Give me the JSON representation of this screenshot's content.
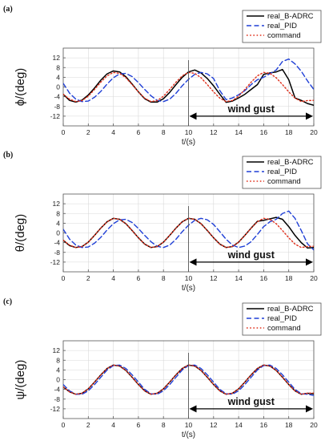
{
  "figure": {
    "panels": [
      "(a)",
      "(b)",
      "(c)"
    ]
  },
  "chart_data": [
    {
      "type": "line",
      "panel_label": "(a)",
      "ylabel": "ϕ/(deg)",
      "xlabel": "t/(s)",
      "xlim": [
        0,
        20
      ],
      "ylim": [
        -16,
        16
      ],
      "xticks": [
        "0",
        "2",
        "4",
        "6",
        "8",
        "10",
        "12",
        "14",
        "16",
        "18",
        "20"
      ],
      "yticks": [
        "12",
        "8",
        "4",
        "0",
        "-4",
        "-8",
        "-12"
      ],
      "grid": true,
      "legend": {
        "placement": "top-right",
        "entries": [
          "real_B-ADRC",
          "real_PID",
          "command"
        ]
      },
      "annotation": {
        "text": "wind gust",
        "x_range": [
          10,
          20
        ],
        "marker_x": 10
      },
      "series": [
        {
          "name": "real_B-ADRC",
          "color": "#000000",
          "style": "solid",
          "x": [
            0,
            0.5,
            1,
            1.5,
            2,
            2.5,
            3,
            3.5,
            4,
            4.5,
            5,
            5.5,
            6,
            6.5,
            7,
            7.5,
            8,
            8.5,
            9,
            9.5,
            10,
            10.5,
            11,
            11.5,
            12,
            12.5,
            13,
            13.5,
            14,
            14.5,
            15,
            15.5,
            16,
            16.5,
            17,
            17.5,
            18,
            18.5,
            19,
            19.5,
            20
          ],
          "y": [
            -3,
            -5.5,
            -6.2,
            -5.4,
            -3.3,
            -0.4,
            2.8,
            5.4,
            6.6,
            6.2,
            4.2,
            1.2,
            -2,
            -4.8,
            -6.2,
            -6.2,
            -4.8,
            -2.2,
            1,
            4,
            6.2,
            7,
            5.8,
            3.5,
            0.5,
            -3,
            -6.3,
            -5.8,
            -4.5,
            -3,
            -1,
            1,
            5.2,
            5.8,
            6.2,
            7.2,
            3,
            -4.5,
            -5.5,
            -6.8,
            -7.5
          ]
        },
        {
          "name": "real_PID",
          "color": "#1f3fd6",
          "style": "dashed",
          "x": [
            0,
            0.5,
            1,
            1.5,
            2,
            2.5,
            3,
            3.5,
            4,
            4.5,
            5,
            5.5,
            6,
            6.5,
            7,
            7.5,
            8,
            8.5,
            9,
            9.5,
            10,
            10.5,
            11,
            11.5,
            12,
            12.5,
            13,
            13.5,
            14,
            14.5,
            15,
            15.5,
            16,
            16.5,
            17,
            17.5,
            18,
            18.5,
            19,
            19.5,
            20
          ],
          "y": [
            1.5,
            -2.5,
            -5,
            -6,
            -5.8,
            -4.2,
            -1.8,
            1.2,
            3.8,
            5.4,
            5.6,
            4.3,
            1.8,
            -1,
            -3.6,
            -5.5,
            -6,
            -5,
            -2.6,
            0.5,
            3.2,
            5.2,
            6,
            5.4,
            3.5,
            -1.5,
            -5.2,
            -4.5,
            -3.2,
            -1.5,
            1,
            3,
            4,
            5.5,
            7,
            10.5,
            11.5,
            9.5,
            6.5,
            2.5,
            -1
          ]
        },
        {
          "name": "command",
          "color": "#e0301c",
          "style": "dotted",
          "x": [
            0,
            0.5,
            1,
            1.5,
            2,
            2.5,
            3,
            3.5,
            4,
            4.5,
            5,
            5.5,
            6,
            6.5,
            7,
            7.5,
            8,
            8.5,
            9,
            9.5,
            10,
            10.5,
            11,
            11.5,
            12,
            12.5,
            13,
            13.5,
            14,
            14.5,
            15,
            15.5,
            16,
            16.5,
            17,
            17.5,
            18,
            18.5,
            19,
            19.5,
            20
          ],
          "y": [
            -3,
            -5,
            -6,
            -5.6,
            -3.8,
            -1,
            2,
            4.6,
            6,
            5.6,
            3.8,
            1,
            -2,
            -4.6,
            -6,
            -5.6,
            -3.8,
            -1,
            2,
            4.6,
            6,
            5.6,
            3.8,
            1,
            -2,
            -4.6,
            -6,
            -5.6,
            -3.8,
            -1,
            2,
            4.6,
            6,
            5.6,
            3.8,
            1,
            -2,
            -4.6,
            -6,
            -5.6,
            -5.5
          ]
        }
      ]
    },
    {
      "type": "line",
      "panel_label": "(b)",
      "ylabel": "θ/(deg)",
      "xlabel": "t/(s)",
      "xlim": [
        0,
        20
      ],
      "ylim": [
        -16,
        16
      ],
      "xticks": [
        "0",
        "2",
        "4",
        "6",
        "8",
        "10",
        "12",
        "14",
        "16",
        "18",
        "20"
      ],
      "yticks": [
        "12",
        "8",
        "4",
        "0",
        "-4",
        "-8",
        "-12"
      ],
      "grid": true,
      "legend": {
        "placement": "top-right",
        "entries": [
          "real_B-ADRC",
          "real_PID",
          "command"
        ]
      },
      "annotation": {
        "text": "wind gust",
        "x_range": [
          10,
          20
        ],
        "marker_x": 10
      },
      "series": [
        {
          "name": "real_B-ADRC",
          "color": "#000000",
          "style": "solid",
          "x": [
            0,
            0.5,
            1,
            1.5,
            2,
            2.5,
            3,
            3.5,
            4,
            4.5,
            5,
            5.5,
            6,
            6.5,
            7,
            7.5,
            8,
            8.5,
            9,
            9.5,
            10,
            10.5,
            11,
            11.5,
            12,
            12.5,
            13,
            13.5,
            14,
            14.5,
            15,
            15.5,
            16,
            16.5,
            17,
            17.5,
            18,
            18.5,
            19,
            19.5,
            20
          ],
          "y": [
            -3,
            -5.2,
            -6,
            -5.6,
            -3.8,
            -1,
            2,
            4.6,
            6,
            5.6,
            3.8,
            1,
            -2,
            -4.6,
            -6,
            -5.6,
            -3.8,
            -1,
            2,
            4.6,
            6,
            5.6,
            3.8,
            1,
            -2,
            -4.6,
            -6,
            -5.6,
            -3.8,
            -1,
            2,
            4.8,
            5.2,
            5.8,
            6.4,
            5.6,
            2.6,
            -1,
            -4,
            -6.2,
            -6
          ]
        },
        {
          "name": "real_PID",
          "color": "#1f3fd6",
          "style": "dashed",
          "x": [
            0,
            0.5,
            1,
            1.5,
            2,
            2.5,
            3,
            3.5,
            4,
            4.5,
            5,
            5.5,
            6,
            6.5,
            7,
            7.5,
            8,
            8.5,
            9,
            9.5,
            10,
            10.5,
            11,
            11.5,
            12,
            12.5,
            13,
            13.5,
            14,
            14.5,
            15,
            15.5,
            16,
            16.5,
            17,
            17.5,
            18,
            18.5,
            19,
            19.5,
            20
          ],
          "y": [
            1.5,
            -2.5,
            -5,
            -6,
            -5.8,
            -4.2,
            -1.8,
            1.2,
            3.8,
            5.4,
            5.6,
            4.3,
            1.8,
            -1,
            -3.6,
            -5.5,
            -6,
            -5,
            -2.6,
            0.5,
            3.2,
            5.2,
            6,
            5.4,
            3.5,
            0.5,
            -2.6,
            -5,
            -6,
            -5.4,
            -3.6,
            -0.6,
            2.6,
            4.6,
            5.6,
            8,
            9,
            6,
            1,
            -4.5,
            -7
          ]
        },
        {
          "name": "command",
          "color": "#e0301c",
          "style": "dotted",
          "x": [
            0,
            0.5,
            1,
            1.5,
            2,
            2.5,
            3,
            3.5,
            4,
            4.5,
            5,
            5.5,
            6,
            6.5,
            7,
            7.5,
            8,
            8.5,
            9,
            9.5,
            10,
            10.5,
            11,
            11.5,
            12,
            12.5,
            13,
            13.5,
            14,
            14.5,
            15,
            15.5,
            16,
            16.5,
            17,
            17.5,
            18,
            18.5,
            19,
            19.5,
            20
          ],
          "y": [
            -3,
            -5,
            -6,
            -5.6,
            -3.8,
            -1,
            2,
            4.6,
            6,
            5.6,
            3.8,
            1,
            -2,
            -4.6,
            -6,
            -5.6,
            -3.8,
            -1,
            2,
            4.6,
            6,
            5.6,
            3.8,
            1,
            -2,
            -4.6,
            -6,
            -5.6,
            -3.8,
            -1,
            2,
            4.6,
            6,
            5.6,
            3.8,
            1,
            -2,
            -4.6,
            -6,
            -5.6,
            -5.5
          ]
        }
      ]
    },
    {
      "type": "line",
      "panel_label": "(c)",
      "ylabel": "ψ/(deg)",
      "xlabel": "t/(s)",
      "xlim": [
        0,
        20
      ],
      "ylim": [
        -16,
        16
      ],
      "xticks": [
        "0",
        "2",
        "4",
        "6",
        "8",
        "10",
        "12",
        "14",
        "16",
        "18",
        "20"
      ],
      "yticks": [
        "12",
        "8",
        "4",
        "0",
        "-4",
        "-8",
        "-12"
      ],
      "grid": true,
      "legend": {
        "placement": "top-right",
        "entries": [
          "real_B-ADRC",
          "real_PID",
          "command"
        ]
      },
      "annotation": {
        "text": "wind gust",
        "x_range": [
          10,
          20
        ],
        "marker_x": 10
      },
      "series": [
        {
          "name": "real_B-ADRC",
          "color": "#000000",
          "style": "solid",
          "x": [
            0,
            0.5,
            1,
            1.5,
            2,
            2.5,
            3,
            3.5,
            4,
            4.5,
            5,
            5.5,
            6,
            6.5,
            7,
            7.5,
            8,
            8.5,
            9,
            9.5,
            10,
            10.5,
            11,
            11.5,
            12,
            12.5,
            13,
            13.5,
            14,
            14.5,
            15,
            15.5,
            16,
            16.5,
            17,
            17.5,
            18,
            18.5,
            19,
            19.5,
            20
          ],
          "y": [
            -3,
            -5,
            -6,
            -5.6,
            -3.8,
            -1,
            2,
            4.6,
            6,
            5.6,
            3.8,
            1,
            -2,
            -4.6,
            -6,
            -5.6,
            -3.8,
            -1,
            2,
            4.6,
            6,
            5.6,
            3.8,
            1,
            -2,
            -4.6,
            -6,
            -5.6,
            -3.8,
            -1,
            2,
            4.6,
            6,
            5.6,
            3.8,
            1,
            -2,
            -4.6,
            -6,
            -5.6,
            -5.8
          ]
        },
        {
          "name": "real_PID",
          "color": "#1f3fd6",
          "style": "dashed",
          "x": [
            0,
            0.5,
            1,
            1.5,
            2,
            2.5,
            3,
            3.5,
            4,
            4.5,
            5,
            5.5,
            6,
            6.5,
            7,
            7.5,
            8,
            8.5,
            9,
            9.5,
            10,
            10.5,
            11,
            11.5,
            12,
            12.5,
            13,
            13.5,
            14,
            14.5,
            15,
            15.5,
            16,
            16.5,
            17,
            17.5,
            18,
            18.5,
            19,
            19.5,
            20
          ],
          "y": [
            -2,
            -4.6,
            -6,
            -6,
            -4.6,
            -2,
            1,
            4,
            5.8,
            6,
            4.6,
            2,
            -1,
            -4,
            -5.8,
            -6,
            -4.6,
            -2,
            1,
            4,
            5.8,
            6,
            4.6,
            2,
            -1,
            -4,
            -5.8,
            -6,
            -4.6,
            -2,
            1,
            4,
            5.8,
            6,
            4.6,
            2,
            -1,
            -4,
            -5.8,
            -6,
            -6.5
          ]
        },
        {
          "name": "command",
          "color": "#e0301c",
          "style": "dotted",
          "x": [
            0,
            0.5,
            1,
            1.5,
            2,
            2.5,
            3,
            3.5,
            4,
            4.5,
            5,
            5.5,
            6,
            6.5,
            7,
            7.5,
            8,
            8.5,
            9,
            9.5,
            10,
            10.5,
            11,
            11.5,
            12,
            12.5,
            13,
            13.5,
            14,
            14.5,
            15,
            15.5,
            16,
            16.5,
            17,
            17.5,
            18,
            18.5,
            19,
            19.5,
            20
          ],
          "y": [
            -3,
            -5,
            -6,
            -5.6,
            -3.8,
            -1,
            2,
            4.6,
            6,
            5.6,
            3.8,
            1,
            -2,
            -4.6,
            -6,
            -5.6,
            -3.8,
            -1,
            2,
            4.6,
            6,
            5.6,
            3.8,
            1,
            -2,
            -4.6,
            -6,
            -5.6,
            -3.8,
            -1,
            2,
            4.6,
            6,
            5.6,
            3.8,
            1,
            -2,
            -4.6,
            -6,
            -5.6,
            -5.5
          ]
        }
      ]
    }
  ]
}
